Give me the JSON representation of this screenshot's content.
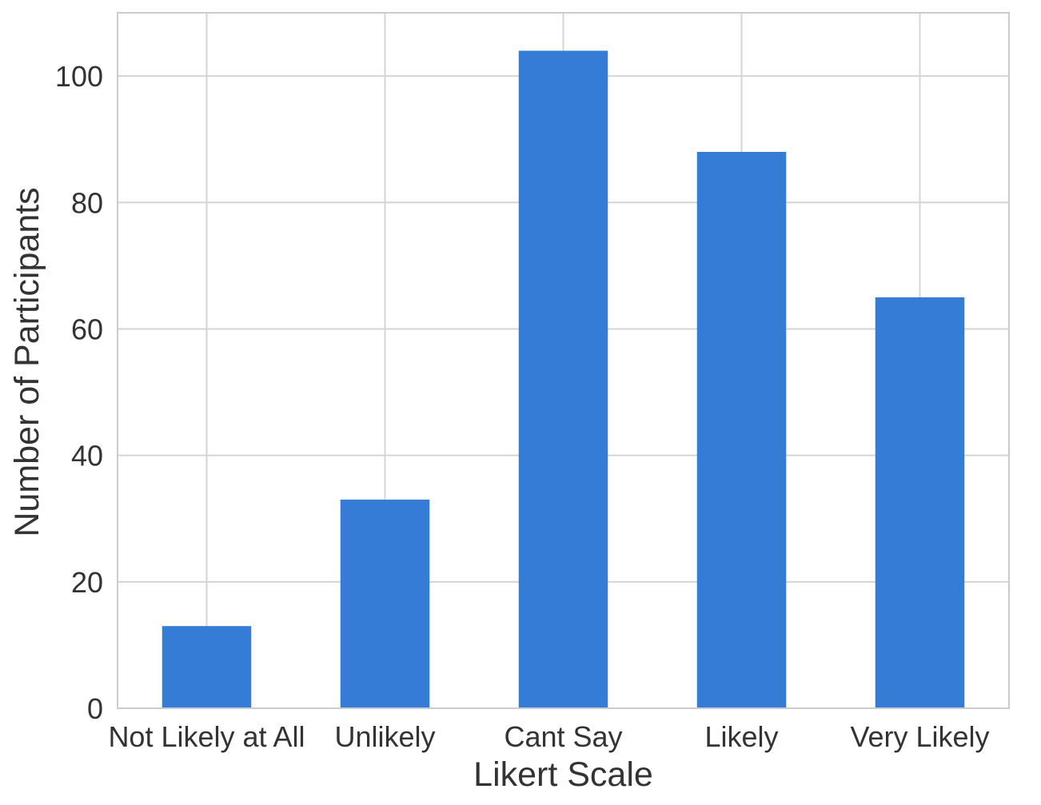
{
  "chart_data": {
    "type": "bar",
    "title": "",
    "xlabel": "Likert Scale",
    "ylabel": "Number of Participants",
    "categories": [
      "Not Likely at All",
      "Unlikely",
      "Cant Say",
      "Likely",
      "Very Likely"
    ],
    "values": [
      13,
      33,
      104,
      88,
      65
    ],
    "ylim": [
      0,
      110
    ],
    "yticks": [
      0,
      20,
      40,
      60,
      80,
      100
    ],
    "grid": true,
    "legend": "none",
    "colors": {
      "bar": "#347cd5",
      "grid": "#d5d5d5",
      "spine": "#cccccc",
      "text": "#333333",
      "background": "#ffffff"
    }
  }
}
